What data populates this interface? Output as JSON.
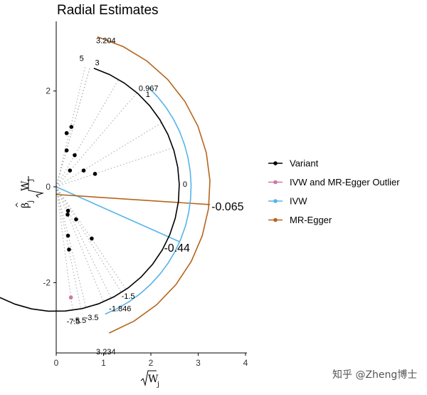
{
  "chart_data": {
    "type": "scatter",
    "title": "Radial Estimates",
    "xlim": [
      0,
      4
    ],
    "ylim": [
      -3.5,
      3.5
    ],
    "x_ticks": [
      0,
      1,
      2,
      3,
      4
    ],
    "y_ticks": [
      -2,
      0,
      2
    ],
    "variants": [
      {
        "x": 0.32,
        "y": 1.25
      },
      {
        "x": 0.22,
        "y": 1.12
      },
      {
        "x": 0.39,
        "y": 0.66
      },
      {
        "x": 0.22,
        "y": 0.76
      },
      {
        "x": 0.29,
        "y": 0.34
      },
      {
        "x": 0.58,
        "y": 0.34
      },
      {
        "x": 0.82,
        "y": 0.27
      },
      {
        "x": 0.25,
        "y": -0.5
      },
      {
        "x": 0.24,
        "y": -0.58
      },
      {
        "x": 0.42,
        "y": -0.68
      },
      {
        "x": 0.25,
        "y": -1.02
      },
      {
        "x": 0.75,
        "y": -1.08
      },
      {
        "x": 0.27,
        "y": -1.31
      }
    ],
    "outliers": [
      {
        "x": 0.31,
        "y": -2.31
      }
    ],
    "ivw_estimate": -0.44,
    "egger_slope": -0.065,
    "egger_intercept": -0.16,
    "variant_scale_radius": 2.6,
    "ivw_scale_radius": 2.85,
    "egger_scale_radius": 3.25,
    "variant_scale_range": [
      -2.6,
      1.26
    ],
    "ivw_scale_range": [
      -1.2,
      0.82
    ],
    "egger_scale_range": [
      -1.22,
      1.3
    ],
    "ray_estimates": [
      4.1,
      3.5,
      1.7,
      3.5,
      1.15,
      0.6,
      0.33,
      -2.0,
      -2.4,
      -1.6,
      -4.0,
      -1.45,
      -4.9,
      -7.4
    ],
    "scale_labels": [
      {
        "text": "5",
        "estimate": 5
      },
      {
        "text": "3",
        "estimate": 3
      },
      {
        "text": "1",
        "estimate": 1
      },
      {
        "text": "0",
        "estimate": 0
      },
      {
        "text": "-1.5",
        "estimate": -1.5
      },
      {
        "text": "-3.5",
        "estimate": -3.5
      },
      {
        "text": "-5.5",
        "estimate": -5.5
      },
      {
        "text": "-7.5",
        "estimate": -7.5
      }
    ],
    "range_labels": [
      {
        "text": "3.204",
        "scale": "egger",
        "end": "top"
      },
      {
        "text": "3.234",
        "scale": "egger",
        "end": "bottom"
      },
      {
        "text": "0.967",
        "scale": "ivw",
        "end": "top"
      },
      {
        "text": "-1.846",
        "scale": "ivw",
        "end": "bottom"
      }
    ],
    "estimate_labels": [
      {
        "text": "-0.065",
        "estimate": -0.065
      },
      {
        "text": "-0.44",
        "estimate": -0.44
      }
    ],
    "legend": [
      "Variant",
      "IVW and MR-Egger Outlier",
      "IVW",
      "MR-Egger"
    ],
    "legend_position": "right",
    "colors": {
      "variant": "#000000",
      "outlier": "#CC79A7",
      "ivw": "#56B4E9",
      "egger": "#B5651D",
      "ray": "#a6a6a6"
    }
  },
  "watermark": "知乎 @Zheng博士"
}
